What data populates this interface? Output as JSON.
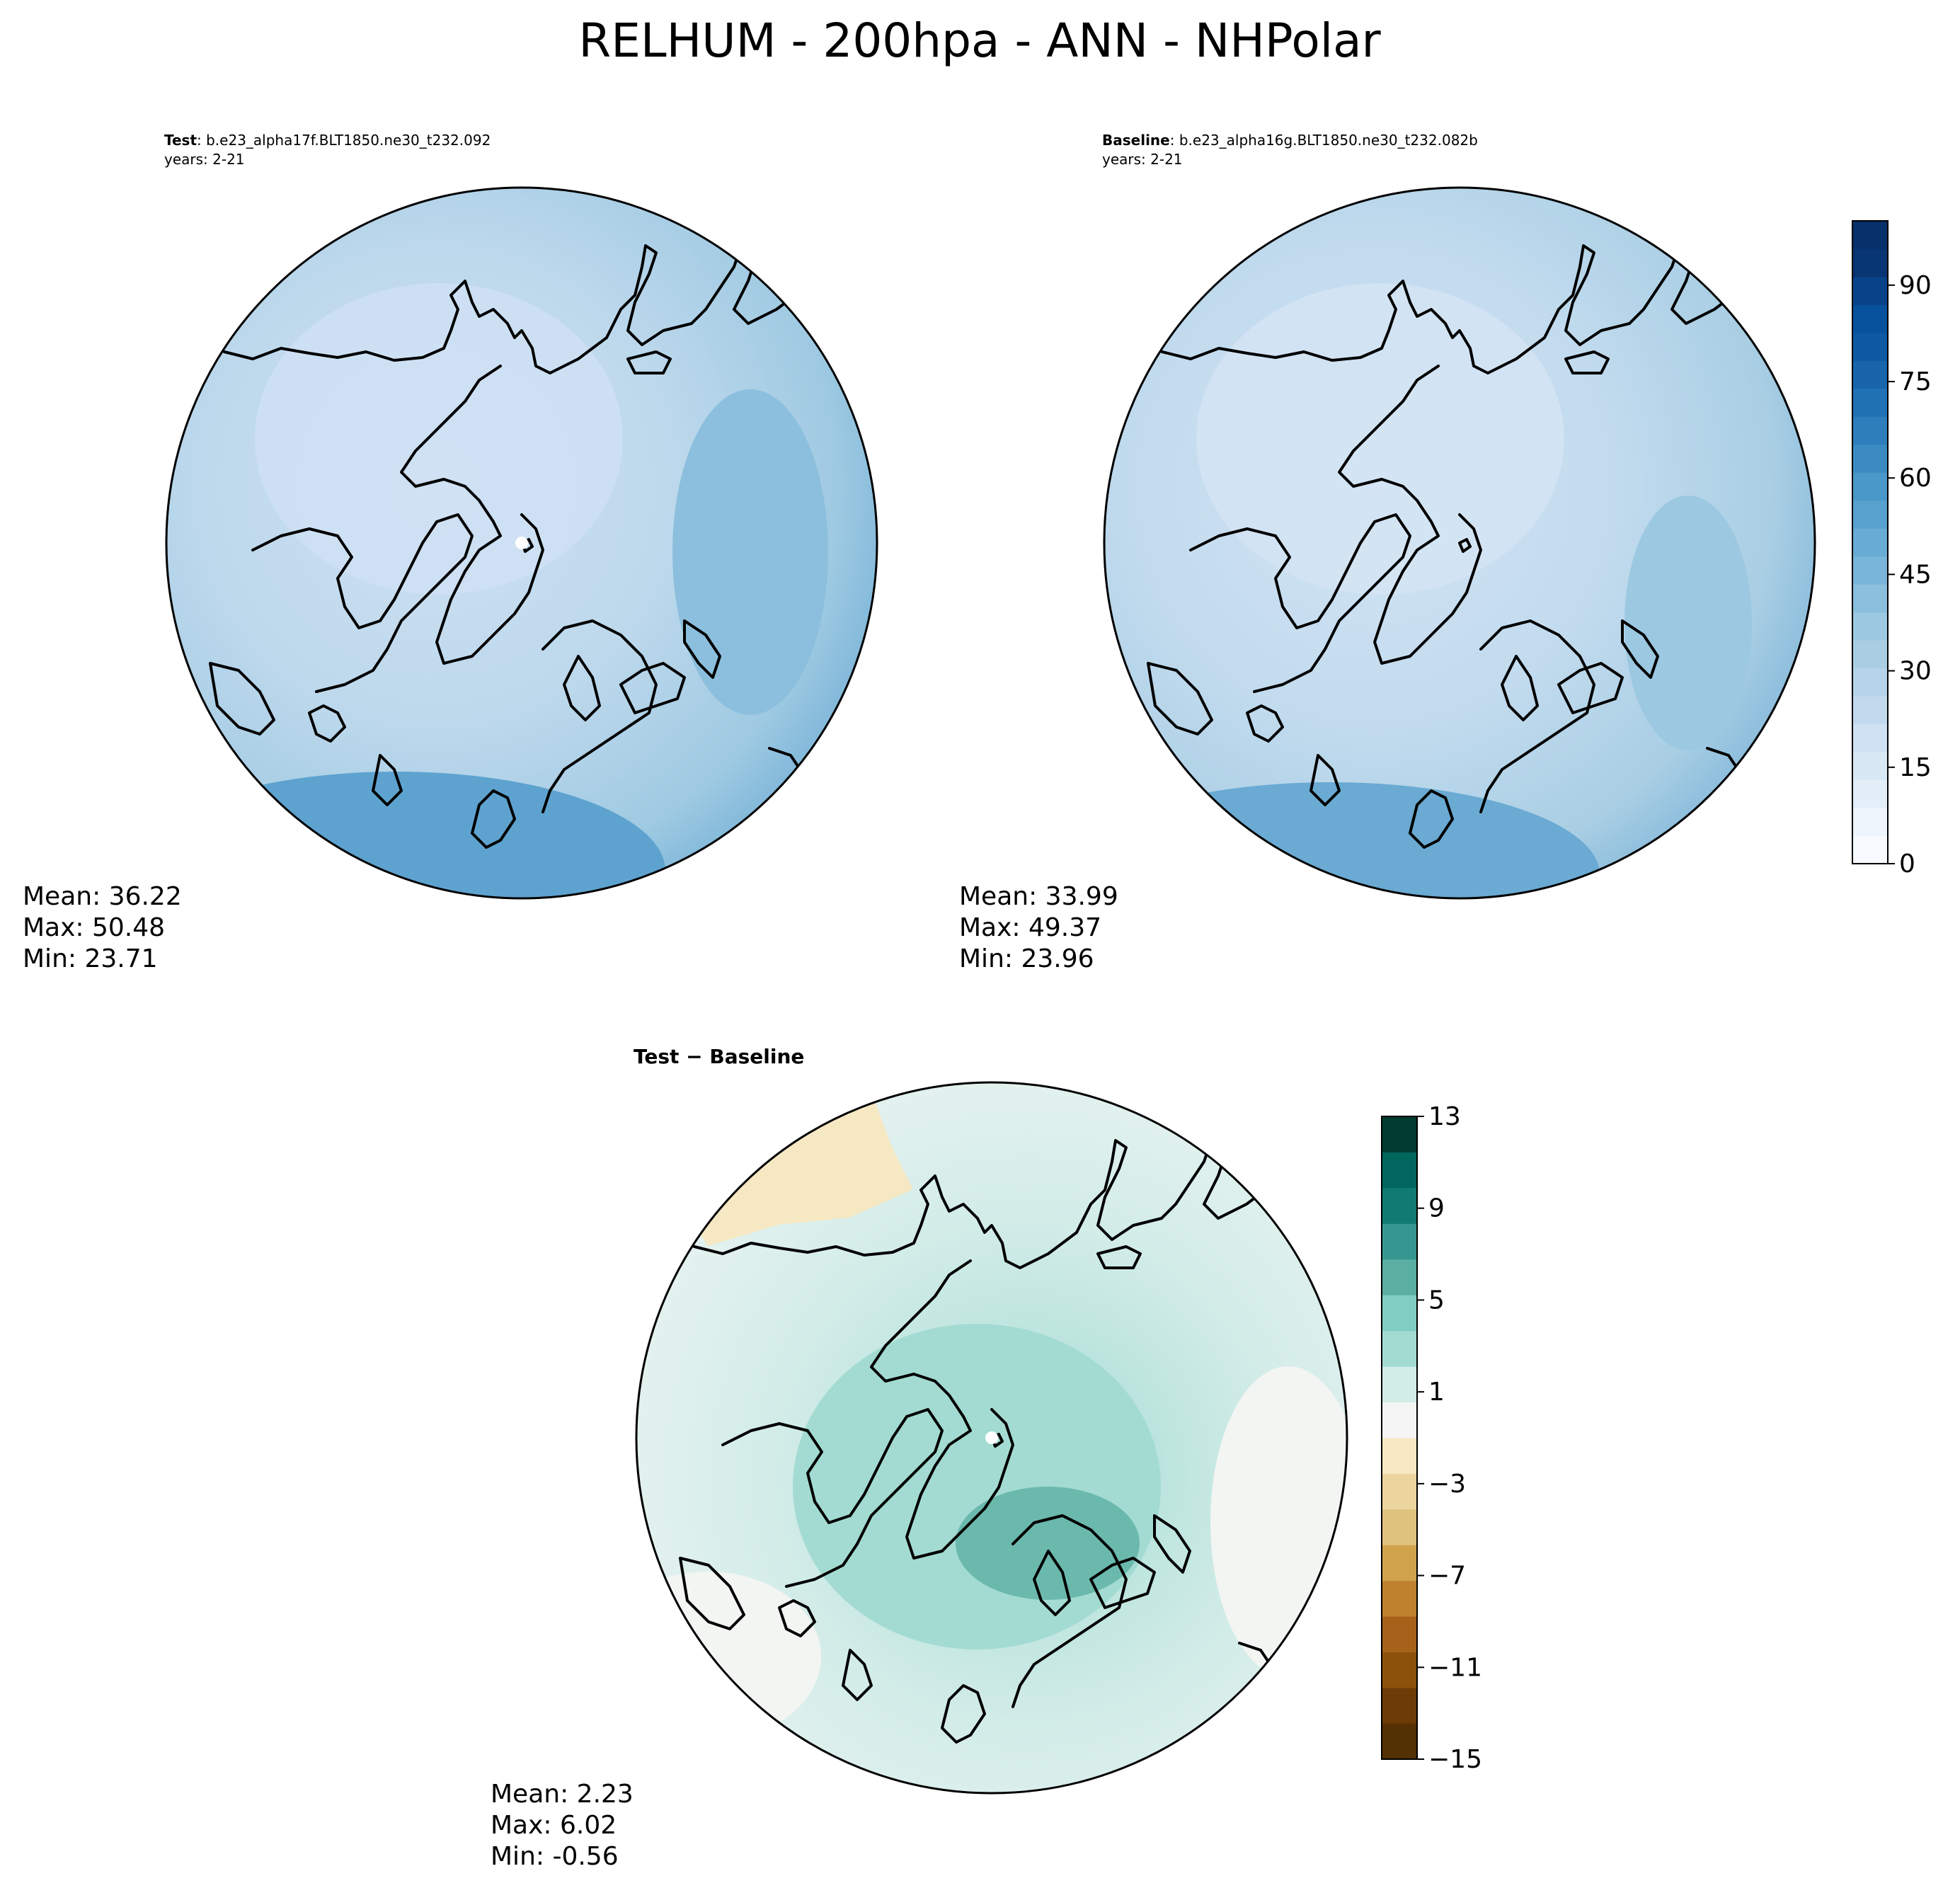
{
  "figure": {
    "title": "RELHUM - 200hpa - ANN - NHPolar"
  },
  "panels": {
    "test": {
      "label_bold": "Test",
      "label_rest": ": b.e23_alpha17f.BLT1850.ne30_t232.092",
      "years": "years: 2-21",
      "stats": {
        "mean": "Mean: 36.22",
        "max": "Max: 50.48",
        "min": "Min: 23.71"
      }
    },
    "baseline": {
      "label_bold": "Baseline",
      "label_rest": ": b.e23_alpha16g.BLT1850.ne30_t232.082b",
      "years": "years: 2-21",
      "stats": {
        "mean": "Mean: 33.99",
        "max": "Max: 49.37",
        "min": "Min: 23.96"
      }
    },
    "diff": {
      "label": "Test − Baseline",
      "stats": {
        "mean": "Mean:  2.23",
        "max": "Max:  6.02",
        "min": "Min: -0.56"
      }
    }
  },
  "colorbars": {
    "relhum": {
      "ticks": [
        "0",
        "15",
        "30",
        "45",
        "60",
        "75",
        "90"
      ],
      "tick_values": [
        0,
        15,
        30,
        45,
        60,
        75,
        90
      ],
      "range": [
        0,
        100
      ],
      "colors": [
        "#f7fbff",
        "#eef5fc",
        "#e3eef9",
        "#d9e8f5",
        "#cfe1f2",
        "#c2d9ee",
        "#b5d4e9",
        "#a9cee4",
        "#9cc9e1",
        "#8abfdd",
        "#79b5d9",
        "#68acd5",
        "#58a1cf",
        "#4a98c9",
        "#3b8bc2",
        "#2e7ebc",
        "#2171b5",
        "#1865ac",
        "#0f59a3",
        "#08519c",
        "#084389",
        "#083573",
        "#08306b"
      ]
    },
    "diff": {
      "ticks": [
        "13",
        "9",
        "5",
        "1",
        "−3",
        "−7",
        "−11",
        "−15"
      ],
      "tick_values": [
        13,
        9,
        5,
        1,
        -3,
        -7,
        -11,
        -15
      ],
      "range": [
        -15,
        13
      ],
      "colors": [
        "#543005",
        "#6c3b06",
        "#8c510a",
        "#a6611a",
        "#bf812d",
        "#d0a24c",
        "#dfc27d",
        "#ebd49d",
        "#f6e8c3",
        "#f5f5f5",
        "#d2ece8",
        "#a3dbd2",
        "#80cdc1",
        "#5aafa2",
        "#35978f",
        "#117a71",
        "#01665e",
        "#003c30"
      ]
    }
  }
}
